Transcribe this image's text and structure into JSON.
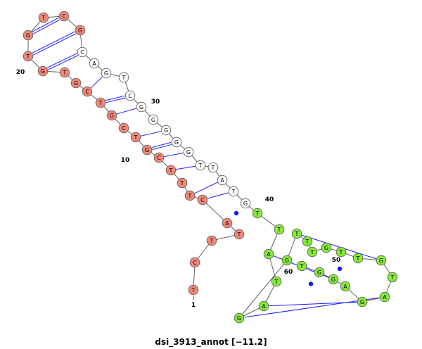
{
  "title": "dsi_3913_annot [−11.2]",
  "colors": {
    "red": "#f08878",
    "green": "#86e838",
    "white": "#ffffff",
    "backbone": "#606060",
    "pair": "#1a1aff"
  },
  "sequence": "TCTTACTTTCGTCGTCGTGTGTCGCAGTCGGGGGTTATGTTATAGGTTTGTTGTAGAGGT",
  "segments": [
    "red",
    "red",
    "red",
    "red",
    "red",
    "red",
    "red",
    "red",
    "red",
    "red",
    "red",
    "red",
    "red",
    "red",
    "red",
    "red",
    "red",
    "red",
    "red",
    "red",
    "red",
    "red",
    "red",
    "red",
    "white",
    "white",
    "white",
    "white",
    "white",
    "white",
    "white",
    "white",
    "white",
    "white",
    "white",
    "white",
    "white",
    "white",
    "white",
    "green",
    "green",
    "green",
    "green",
    "green",
    "green",
    "green",
    "green",
    "green",
    "green",
    "green",
    "green",
    "green",
    "green",
    "green",
    "green",
    "green",
    "green",
    "green",
    "green",
    "green"
  ],
  "number_labels": [
    {
      "index": 1,
      "text": "1"
    },
    {
      "index": 10,
      "text": "10"
    },
    {
      "index": 20,
      "text": "20"
    },
    {
      "index": 30,
      "text": "30"
    },
    {
      "index": 40,
      "text": "40"
    },
    {
      "index": 50,
      "text": "50"
    },
    {
      "index": 60,
      "text": "60"
    }
  ],
  "pairs": [
    {
      "i": 5,
      "j": 39,
      "type": "GU"
    },
    {
      "i": 6,
      "j": 38,
      "type": "AU"
    },
    {
      "i": 7,
      "j": 37,
      "type": "AU"
    },
    {
      "i": 9,
      "j": 35,
      "type": "AU"
    },
    {
      "i": 10,
      "j": 34,
      "type": "AU"
    },
    {
      "i": 11,
      "j": 33,
      "type": "GC"
    },
    {
      "i": 12,
      "j": 32,
      "type": "AU"
    },
    {
      "i": 14,
      "j": 30,
      "type": "AU"
    },
    {
      "i": 15,
      "j": 29,
      "type": "GC"
    },
    {
      "i": 16,
      "j": 27,
      "type": "AU"
    },
    {
      "i": 19,
      "j": 25,
      "type": "GC"
    },
    {
      "i": 20,
      "j": 24,
      "type": "GC"
    },
    {
      "i": 21,
      "j": 23,
      "type": "GC"
    },
    {
      "i": 42,
      "j": 58,
      "type": "AU"
    },
    {
      "i": 43,
      "j": 57,
      "type": "GU"
    },
    {
      "i": 44,
      "j": 56,
      "type": "AU"
    },
    {
      "i": 45,
      "j": 55,
      "type": "AU"
    },
    {
      "i": 46,
      "j": 54,
      "type": "GU"
    },
    {
      "i": 47,
      "j": 53,
      "type": "AU"
    }
  ]
}
